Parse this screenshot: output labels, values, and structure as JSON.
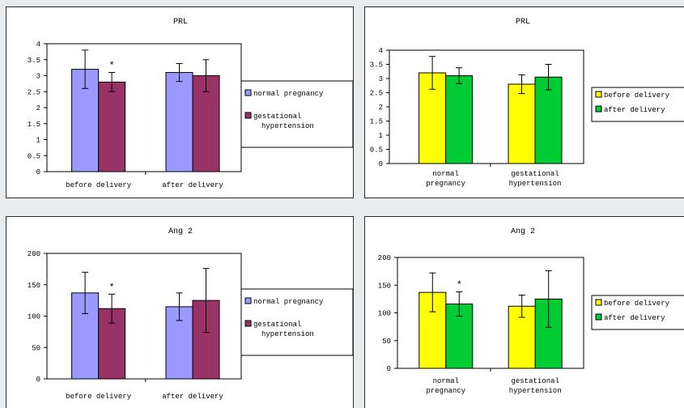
{
  "colors": {
    "normal_pregnancy": "#9999ff",
    "gestational_hypertension": "#993366",
    "before_delivery": "#ffff00",
    "after_delivery": "#00cc33"
  },
  "chart_data": [
    {
      "type": "bar",
      "title": "PRL",
      "categories": [
        "before delivery",
        "after delivery"
      ],
      "series": [
        {
          "name": "normal pregnancy",
          "values": [
            3.2,
            3.1
          ],
          "errors": [
            0.6,
            0.28
          ],
          "color": "#9999ff"
        },
        {
          "name": "gestational hypertension",
          "values": [
            2.8,
            3.0
          ],
          "errors": [
            0.3,
            0.5
          ],
          "color": "#993366"
        }
      ],
      "annotations": [
        {
          "series": 1,
          "category": 0,
          "text": "*"
        }
      ],
      "yticks": [
        "0",
        "0.5",
        "1",
        "1.5",
        "2",
        "2.5",
        "3",
        "3.5",
        "4"
      ],
      "ylim": [
        0,
        4
      ],
      "legend": "right",
      "grid": false
    },
    {
      "type": "bar",
      "title": "PRL",
      "categories": [
        "normal pregnancy",
        "gestational hypertension"
      ],
      "series": [
        {
          "name": "before delivery",
          "values": [
            3.2,
            2.8
          ],
          "errors": [
            0.58,
            0.33
          ],
          "color": "#ffff00"
        },
        {
          "name": "after delivery",
          "values": [
            3.1,
            3.05
          ],
          "errors": [
            0.28,
            0.45
          ],
          "color": "#00cc33"
        }
      ],
      "annotations": [],
      "yticks": [
        "0",
        "0.5",
        "1",
        "1.5",
        "2",
        "2.5",
        "3",
        "3.5",
        "4"
      ],
      "ylim": [
        0,
        4
      ],
      "legend": "right",
      "grid": false
    },
    {
      "type": "bar",
      "title": "Ang 2",
      "categories": [
        "before delivery",
        "after delivery"
      ],
      "series": [
        {
          "name": "normal pregnancy",
          "values": [
            137,
            115
          ],
          "errors": [
            33,
            22
          ],
          "color": "#9999ff"
        },
        {
          "name": "gestational hypertension",
          "values": [
            112,
            125
          ],
          "errors": [
            23,
            51
          ],
          "color": "#993366"
        }
      ],
      "annotations": [
        {
          "series": 1,
          "category": 0,
          "text": "*"
        }
      ],
      "yticks": [
        "0",
        "50",
        "100",
        "150",
        "200"
      ],
      "ylim": [
        0,
        200
      ],
      "legend": "right",
      "grid": false
    },
    {
      "type": "bar",
      "title": "Ang 2",
      "categories": [
        "normal pregnancy",
        "gestational hypertension"
      ],
      "series": [
        {
          "name": "before delivery",
          "values": [
            137,
            112
          ],
          "errors": [
            35,
            20
          ],
          "color": "#ffff00"
        },
        {
          "name": "after delivery",
          "values": [
            116,
            125
          ],
          "errors": [
            22,
            51
          ],
          "color": "#00cc33"
        }
      ],
      "annotations": [
        {
          "series": 1,
          "category": 0,
          "text": "*"
        }
      ],
      "yticks": [
        "0",
        "50",
        "100",
        "150",
        "200"
      ],
      "ylim": [
        0,
        200
      ],
      "legend": "right",
      "grid": false
    }
  ]
}
